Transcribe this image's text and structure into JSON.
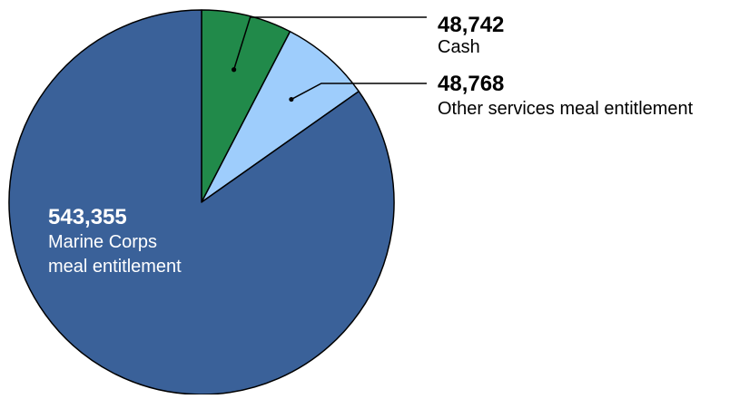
{
  "chart_data": {
    "type": "pie",
    "start_angle": "12 o'clock, clockwise",
    "slices": [
      {
        "label": "Cash",
        "value": 48742,
        "value_text": "48,742",
        "color": "#218a4a"
      },
      {
        "label": "Other services meal entitlement",
        "value": 48768,
        "value_text": "48,768",
        "color": "#9ecdfc"
      },
      {
        "label_lines": [
          "Marine Corps",
          "meal entitlement"
        ],
        "value": 543355,
        "value_text": "543,355",
        "color": "#3a6199"
      }
    ]
  }
}
